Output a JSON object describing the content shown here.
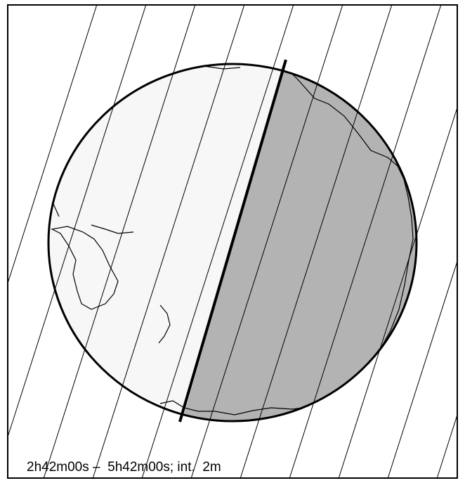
{
  "caption": {
    "text": "2h42m00s –  5h42m00s; int.  2m"
  },
  "map": {
    "projection": "orthographic globe",
    "lighting": {
      "day_side_color": "#f7f7f7",
      "night_side_color": "#b3b3b3",
      "globe_outline_color": "#000000",
      "grid_line_color": "#000000"
    },
    "terminator": "straight great-circle boundary between day and night sides",
    "time_lines": "thin oblique lines at 2-minute intervals across the map"
  },
  "icons": {
    "globe": "globe-icon"
  }
}
